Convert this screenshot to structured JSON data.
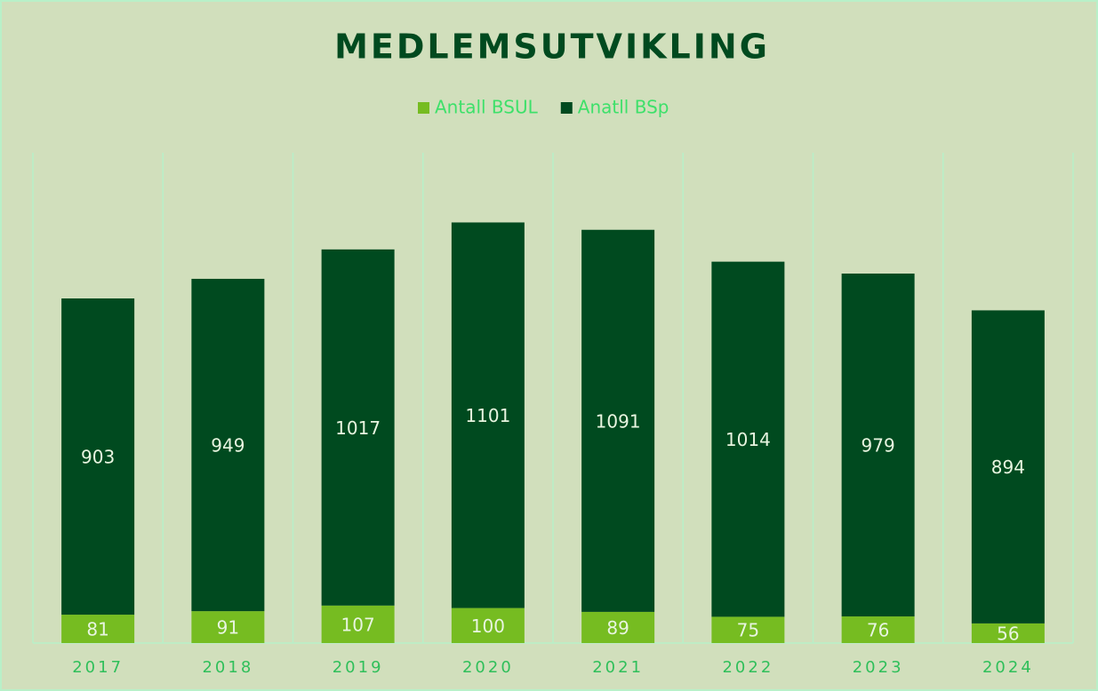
{
  "chart_data": {
    "type": "stacked_bar",
    "title": "MEDLEMSUTVIKLING",
    "categories": [
      "2017",
      "2018",
      "2019",
      "2020",
      "2021",
      "2022",
      "2023",
      "2024"
    ],
    "series": [
      {
        "name": "Antall BSUL",
        "color": "#76bc21",
        "values": [
          81,
          91,
          107,
          100,
          89,
          75,
          76,
          56
        ]
      },
      {
        "name": "Anatll BSp",
        "color": "#004a1f",
        "values": [
          903,
          949,
          1017,
          1101,
          1091,
          1014,
          979,
          894
        ]
      }
    ],
    "ylim": [
      0,
      1400
    ]
  }
}
